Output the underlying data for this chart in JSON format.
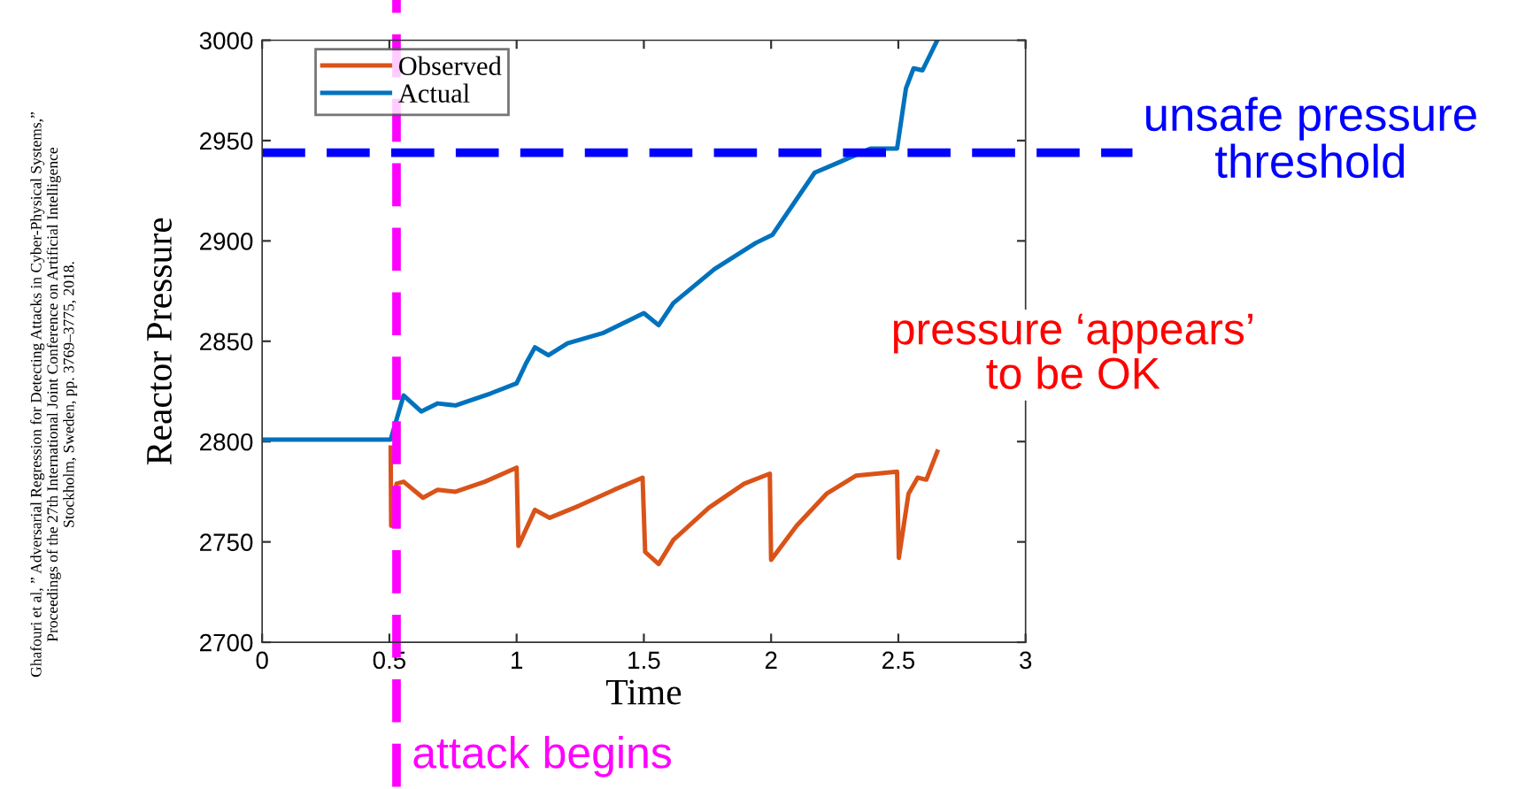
{
  "chart_data": {
    "type": "line",
    "xlabel": "Time",
    "ylabel": "Reactor Pressure",
    "xlim": [
      0,
      3
    ],
    "ylim": [
      2700,
      3000
    ],
    "xticks": [
      0,
      0.5,
      1,
      1.5,
      2,
      2.5,
      3
    ],
    "yticks": [
      2700,
      2750,
      2800,
      2850,
      2900,
      2950,
      3000
    ],
    "series": [
      {
        "name": "Observed",
        "color": "#d95319",
        "x": [
          0.505,
          0.507,
          0.528,
          0.556,
          0.632,
          0.69,
          0.76,
          0.875,
          1.0,
          1.007,
          1.072,
          1.13,
          1.245,
          1.384,
          1.495,
          1.505,
          1.558,
          1.616,
          1.755,
          1.894,
          1.995,
          2.0,
          2.1,
          2.218,
          2.333,
          2.495,
          2.502,
          2.54,
          2.576,
          2.61,
          2.653
        ],
        "values": [
          2797,
          2758,
          2779,
          2780,
          2772,
          2776,
          2775,
          2780,
          2787,
          2748,
          2766,
          2762,
          2768,
          2776,
          2782,
          2745,
          2739,
          2751,
          2767,
          2779,
          2784,
          2741,
          2758,
          2774,
          2783,
          2785,
          2742,
          2774,
          2782,
          2781,
          2795
        ]
      },
      {
        "name": "Actual",
        "color": "#0072bd",
        "x": [
          0,
          0.25,
          0.505,
          0.556,
          0.625,
          0.69,
          0.76,
          0.898,
          1.0,
          1.037,
          1.072,
          1.125,
          1.2,
          1.338,
          1.5,
          1.558,
          1.616,
          1.778,
          1.94,
          2.005,
          2.171,
          2.264,
          2.39,
          2.495,
          2.53,
          2.56,
          2.595,
          2.653
        ],
        "values": [
          2801,
          2801,
          2801,
          2823,
          2815,
          2819,
          2818,
          2824,
          2829,
          2839,
          2847,
          2843,
          2849,
          2854,
          2864,
          2858,
          2869,
          2886,
          2899,
          2903,
          2934,
          2939,
          2946,
          2946,
          2976,
          2986,
          2985,
          3000
        ]
      }
    ],
    "ref_lines": [
      {
        "axis": "y",
        "value": 2944,
        "label": "unsafe pressure\nthreshold",
        "color": "#0000ff",
        "line_style": "dashed"
      },
      {
        "axis": "x",
        "value": 0.528,
        "label": "attack begins",
        "color": "#ff00ff",
        "line_style": "dashed"
      }
    ],
    "annotations": [
      "pressure ‘appears’\nto be OK",
      "Ghafouri et al, ” Adversarial Regression for Detecting Attacks in Cyber-Physical Systems,”\nProceedings of the 27th International Joint Conference on Artificial Intelligence\nStockholm, Sweden, pp. 3769–3775, 2018."
    ],
    "legend": "top left",
    "grid": false,
    "marker": "none",
    "line_style": "solid"
  }
}
